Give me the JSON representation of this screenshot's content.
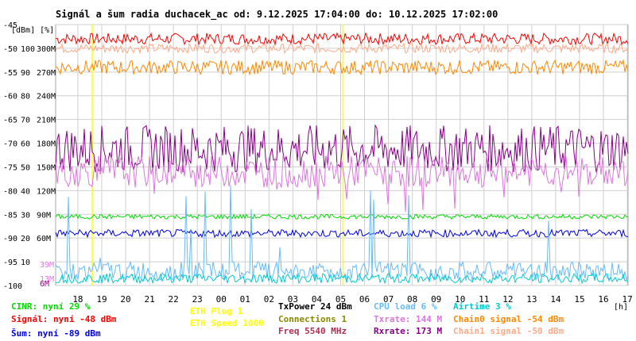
{
  "chart_data": {
    "type": "line",
    "title": "Signál a šum radia duchacek_ac od: 9.12.2025 17:04:00 do: 10.12.2025 17:02:00",
    "units_label": "[dBm] [%]",
    "xlabel": "[h]",
    "x_hours": [
      "18",
      "19",
      "20",
      "21",
      "22",
      "23",
      "00",
      "01",
      "02",
      "03",
      "04",
      "05",
      "06",
      "07",
      "08",
      "09",
      "10",
      "11",
      "12",
      "13",
      "14",
      "15",
      "16",
      "17"
    ],
    "x_range": [
      17.07,
      41.03
    ],
    "y_dbm_ticks": [
      "-45",
      "-50",
      "-55",
      "-60",
      "-65",
      "-70",
      "-75",
      "-80",
      "-85",
      "-90",
      "-95",
      "-100"
    ],
    "y_pct_ticks": [
      "100",
      "90",
      "80",
      "70",
      "60",
      "50",
      "40",
      "30",
      "20",
      "10"
    ],
    "y_rate_ticks": [
      "300M",
      "270M",
      "240M",
      "210M",
      "180M",
      "150M",
      "120M",
      "90M",
      "60M"
    ],
    "ylim_dbm": [
      -100,
      -45
    ],
    "series_small_labels": [
      {
        "text": "39M",
        "color": "#dd77dd"
      },
      {
        "text": "13M",
        "color": "#dd77dd"
      },
      {
        "text": "6M",
        "color": "#8a008a"
      }
    ],
    "vertical_markers": [
      {
        "x": 18.6,
        "color": "#ffff00"
      },
      {
        "x": 5.1,
        "color": "#ffff00"
      }
    ],
    "series": [
      {
        "name": "Signál",
        "color": "#ff0000",
        "unit": "dBm",
        "level": -48,
        "noise": 1.2
      },
      {
        "name": "Chain1 signal",
        "color": "#ffaa88",
        "unit": "dBm",
        "level": -50,
        "noise": 1.0
      },
      {
        "name": "Chain0 signal",
        "color": "#ff8800",
        "unit": "dBm",
        "level": -54,
        "noise": 1.5
      },
      {
        "name": "Rxrate",
        "color": "#880088",
        "unit": "Mbps",
        "level": 173,
        "noise": 30
      },
      {
        "name": "Txrate",
        "color": "#dd77dd",
        "unit": "Mbps",
        "level": 144,
        "noise": 20
      },
      {
        "name": "CINR",
        "color": "#00dd00",
        "unit": "%",
        "level": 29,
        "noise": 1
      },
      {
        "name": "Šum",
        "color": "#0000ee",
        "unit": "dBm",
        "level": -89,
        "noise": 0.8
      },
      {
        "name": "CPU load",
        "color": "#66bbff",
        "unit": "%",
        "level": 6,
        "noise": 4
      },
      {
        "name": "Airtime",
        "color": "#00cccc",
        "unit": "%",
        "level": 3,
        "noise": 2
      },
      {
        "name": "TxPower",
        "color": "#880088",
        "unit": "dBm",
        "level": 24,
        "noise": 0
      },
      {
        "name": "Connections",
        "color": "#888800",
        "unit": "",
        "level": 1,
        "noise": 0
      }
    ]
  },
  "legend": {
    "cinr": {
      "text": "CINR: nyní 29 %",
      "color": "#00dd00"
    },
    "signal": {
      "text": "Signál: nyní -48 dBm",
      "color": "#ff0000"
    },
    "noise": {
      "text": "Šum: nyní -89 dBm",
      "color": "#0000ee"
    },
    "eth_plug": {
      "text": "ETH Plug 1",
      "color": "#ffff00"
    },
    "eth_speed": {
      "text": "ETH Speed 1000",
      "color": "#ffff00"
    },
    "txpower": {
      "text": "TxPower 24 dBm",
      "color": "#000000"
    },
    "connections": {
      "text": "Connections 1",
      "color": "#888800"
    },
    "freq": {
      "text": "Freq 5540 MHz",
      "color": "#aa3355"
    },
    "cpu": {
      "text": "CPU load 6 %",
      "color": "#66bbff"
    },
    "txrate": {
      "text": "Txrate: 144 M",
      "color": "#dd77dd"
    },
    "rxrate": {
      "text": "Rxrate: 173 M",
      "color": "#880088"
    },
    "airtime": {
      "text": "Airtime 3 %",
      "color": "#00cccc"
    },
    "chain0": {
      "text": "Chain0 signal -54 dBm",
      "color": "#ff8800"
    },
    "chain1": {
      "text": "Chain1 signal -50 dBm",
      "color": "#ffaa88"
    }
  }
}
